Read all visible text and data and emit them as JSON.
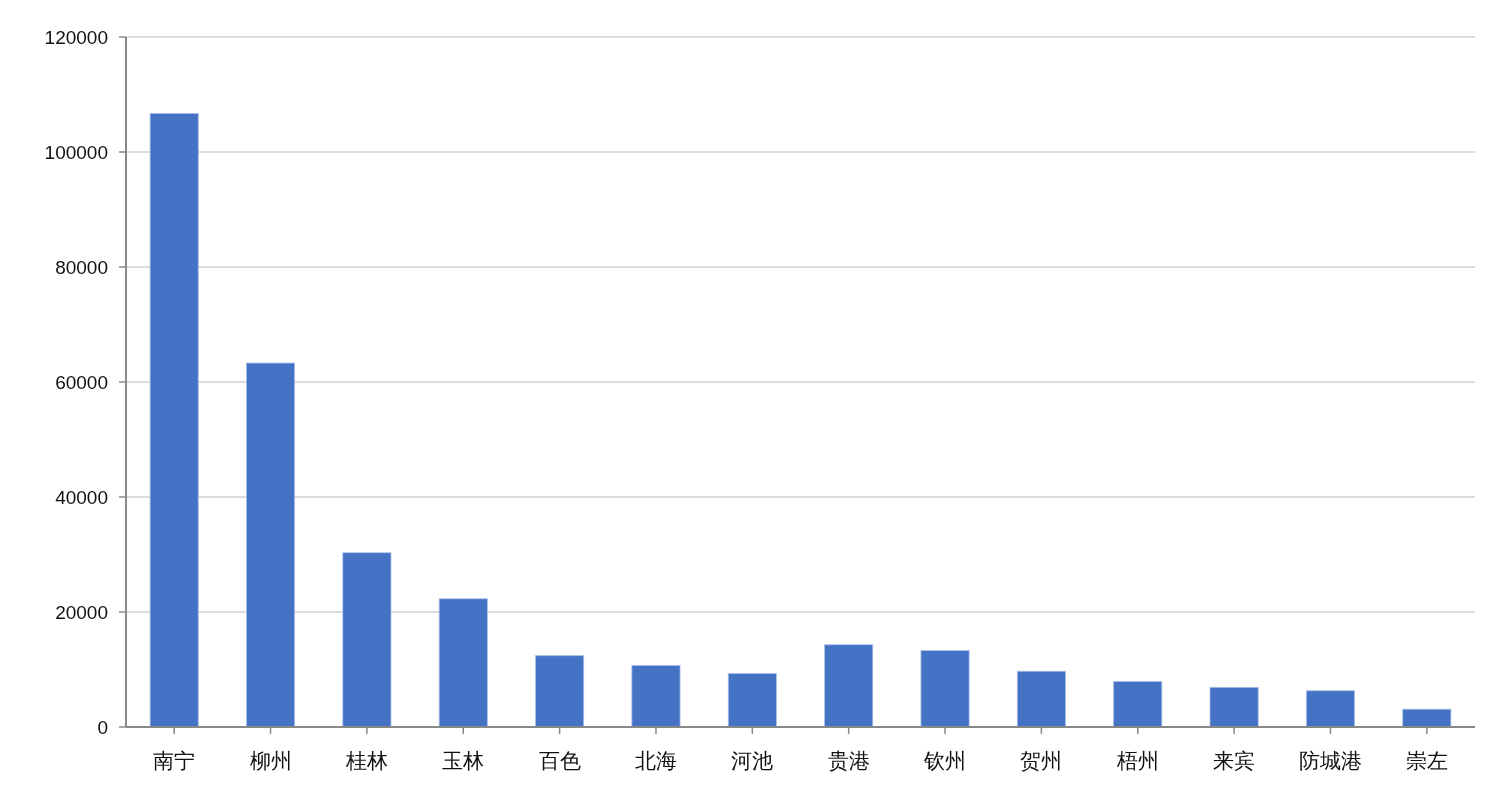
{
  "chart_data": {
    "type": "bar",
    "categories": [
      "南宁",
      "柳州",
      "桂林",
      "玉林",
      "百色",
      "北海",
      "河池",
      "贵港",
      "钦州",
      "贺州",
      "梧州",
      "来宾",
      "防城港",
      "崇左"
    ],
    "values": [
      106700,
      63300,
      30300,
      22300,
      12400,
      10700,
      9300,
      14300,
      13300,
      9700,
      7900,
      6900,
      6300,
      3100
    ],
    "color": "#4472c4",
    "ylim": [
      0,
      120000
    ],
    "yticks": [
      0,
      20000,
      40000,
      60000,
      80000,
      100000,
      120000
    ],
    "grid": "y"
  }
}
